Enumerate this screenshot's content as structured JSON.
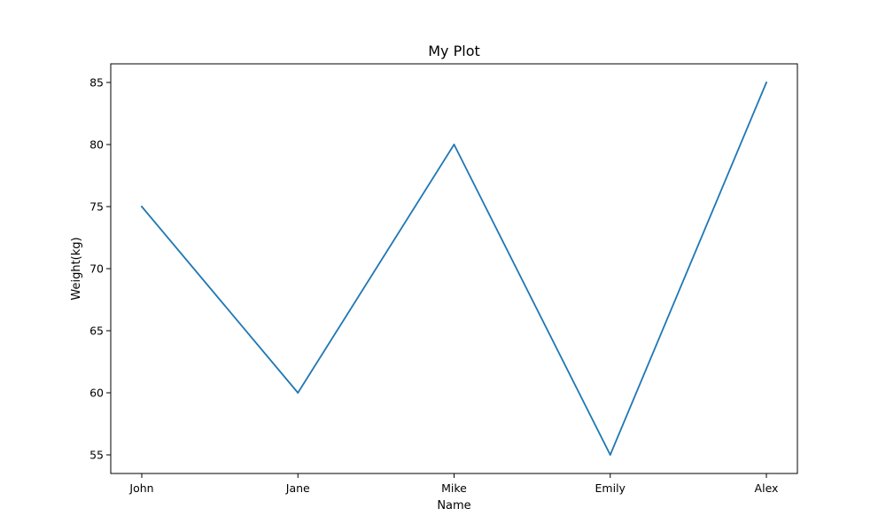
{
  "chart_data": {
    "type": "line",
    "title": "My Plot",
    "xlabel": "Name",
    "ylabel": "Weight(kg)",
    "categories": [
      "John",
      "Jane",
      "Mike",
      "Emily",
      "Alex"
    ],
    "series": [
      {
        "values": [
          75,
          60,
          80,
          55,
          85
        ],
        "color": "#1f77b4"
      }
    ],
    "ylim": [
      53.5,
      86.5
    ],
    "yticks": [
      55,
      60,
      65,
      70,
      75,
      80,
      85
    ],
    "grid": false,
    "legend": "none"
  }
}
